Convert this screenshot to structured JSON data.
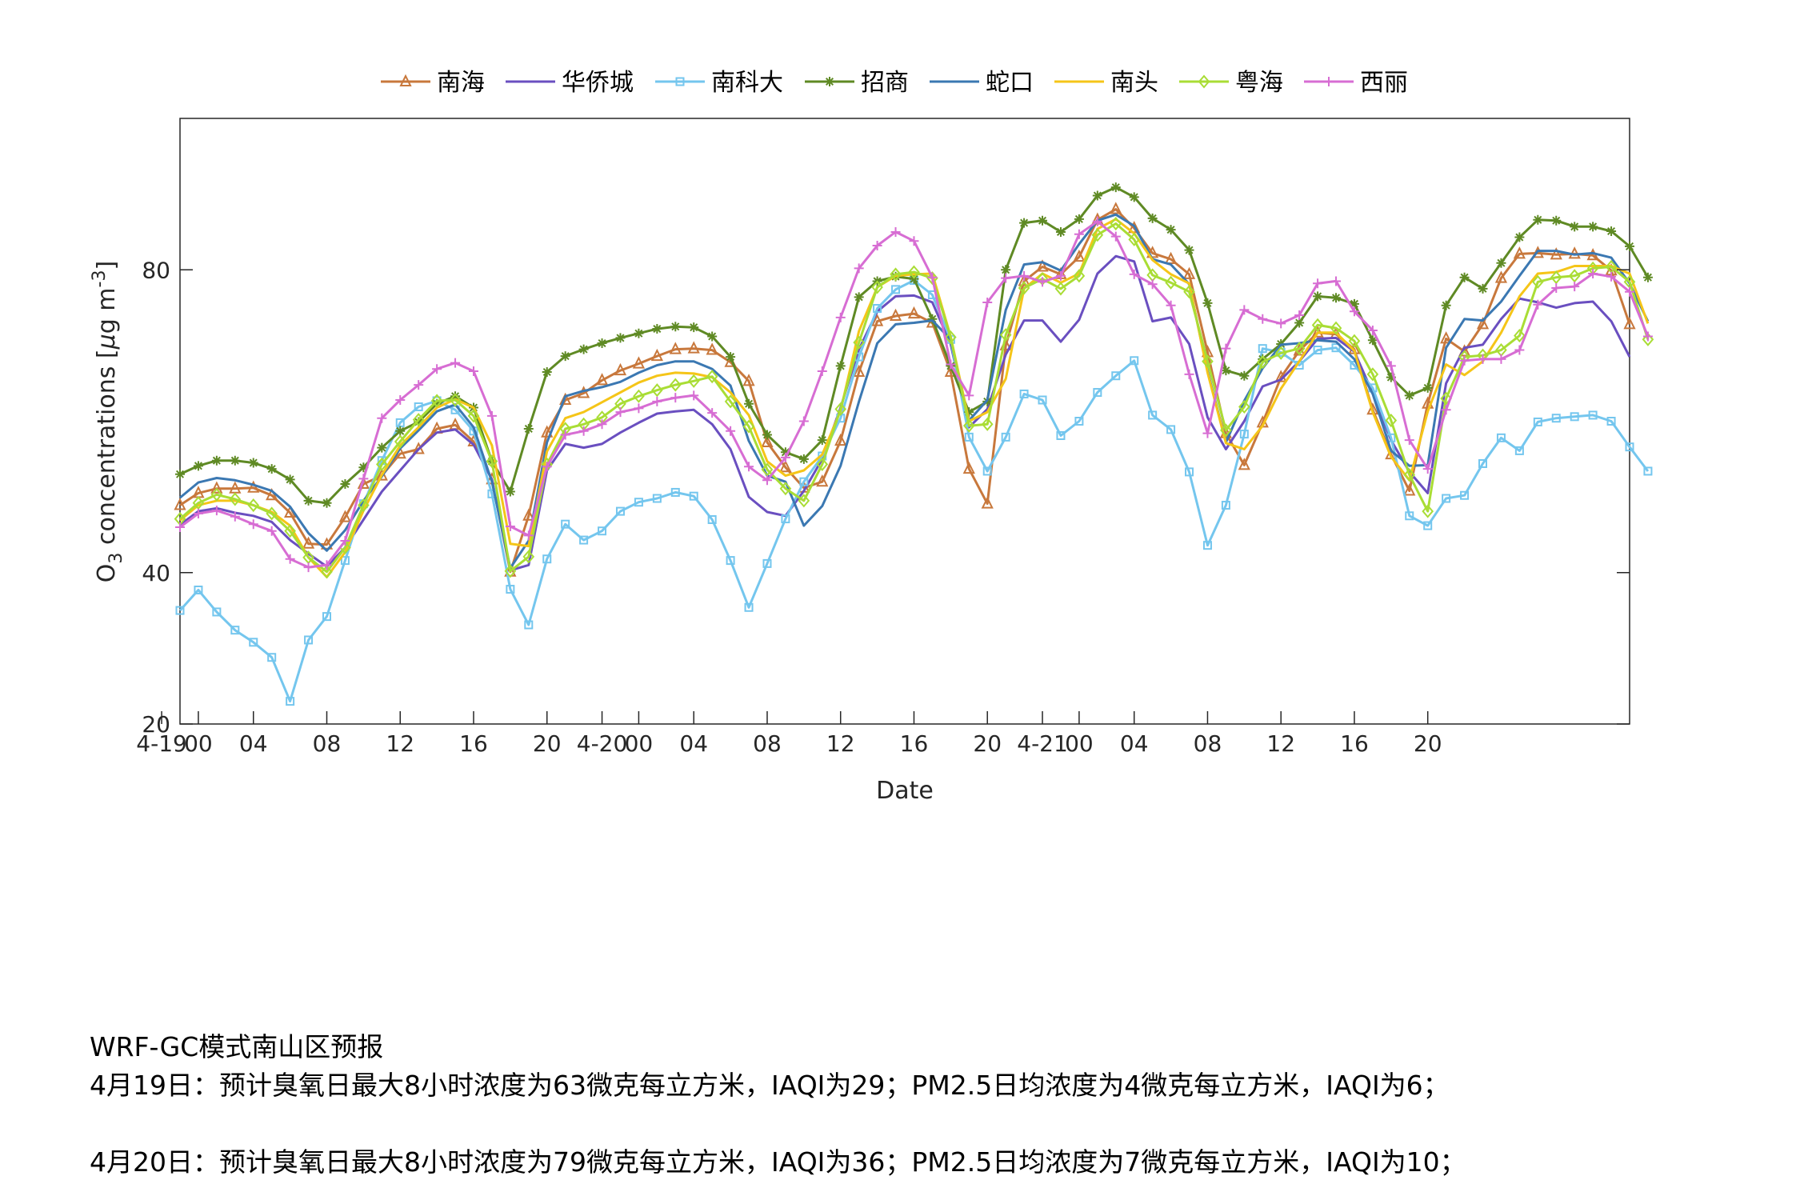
{
  "chart_data": {
    "type": "line",
    "xlabel": "Date",
    "ylabel_main": "O",
    "ylabel_sub": "3",
    "ylabel_rest": " concentrations [",
    "ylabel_mu": "μ",
    "ylabel_unit": "g m",
    "ylabel_sup": "-3",
    "ylabel_close": "]",
    "ylim": [
      20,
      100
    ],
    "yticks": [
      20,
      40,
      80
    ],
    "ytick_labels": [
      "20",
      "40",
      "80"
    ],
    "x_start_hour": 0,
    "x_end_hour": 71,
    "xticks": [
      {
        "hour": -1,
        "label": "4-19"
      },
      {
        "hour": 1,
        "label": "00"
      },
      {
        "hour": 4,
        "label": "04"
      },
      {
        "hour": 8,
        "label": "08"
      },
      {
        "hour": 12,
        "label": "12"
      },
      {
        "hour": 16,
        "label": "16"
      },
      {
        "hour": 20,
        "label": "20"
      },
      {
        "hour": 23,
        "label": "4-20"
      },
      {
        "hour": 25,
        "label": "00"
      },
      {
        "hour": 28,
        "label": "04"
      },
      {
        "hour": 32,
        "label": "08"
      },
      {
        "hour": 36,
        "label": "12"
      },
      {
        "hour": 40,
        "label": "16"
      },
      {
        "hour": 44,
        "label": "20"
      },
      {
        "hour": 47,
        "label": "4-21"
      },
      {
        "hour": 49,
        "label": "00"
      },
      {
        "hour": 52,
        "label": "04"
      },
      {
        "hour": 56,
        "label": "08"
      },
      {
        "hour": 60,
        "label": "12"
      },
      {
        "hour": 64,
        "label": "16"
      },
      {
        "hour": 68,
        "label": "20"
      }
    ],
    "grid": false,
    "legend_placement": "top-center",
    "series": [
      {
        "name": "南海",
        "color": "#c8783c",
        "marker": "triangle",
        "values": [
          48.9,
          50.5,
          51.1,
          51.1,
          51.2,
          50.2,
          47.9,
          43.8,
          43.7,
          47.3,
          51.7,
          52.8,
          55.7,
          56.3,
          59,
          59.5,
          57.3,
          52.3,
          40.1,
          47.5,
          58.5,
          62.8,
          63.7,
          65.4,
          66.7,
          67.6,
          68.6,
          69.5,
          69.6,
          69.4,
          67.8,
          65.3,
          57.2,
          53.9,
          51.2,
          52,
          57.4,
          66.5,
          73.2,
          73.9,
          74.2,
          73,
          66.5,
          53.7,
          49.1,
          70,
          78.5,
          80.4,
          79.4,
          81.7,
          86.6,
          88,
          85.5,
          82.2,
          81.4,
          79.4,
          69.1,
          58.4,
          54.2,
          59.8,
          65.8,
          69.3,
          71.7,
          71.5,
          69.5,
          61.5,
          55.6,
          50.8,
          62.3,
          70.9,
          69.2,
          72.8,
          78.9,
          82.1,
          82.2,
          82,
          82.1,
          81.9,
          79.9,
          72.8
        ]
      },
      {
        "name": "华侨城",
        "color": "#6a4fc0",
        "marker": "none",
        "values": [
          46.3,
          48.1,
          48.5,
          47.9,
          47.5,
          46.7,
          44.3,
          42.5,
          40.8,
          43.3,
          47,
          50.7,
          53.5,
          56.3,
          58.5,
          58.9,
          56.9,
          52.3,
          40.3,
          41,
          53.5,
          57,
          56.5,
          57,
          58.5,
          59.8,
          61,
          61.3,
          61.5,
          59.6,
          56.3,
          50,
          48,
          47.5,
          50.8,
          55,
          61.8,
          69.5,
          74.5,
          76.5,
          76.6,
          75.7,
          70.2,
          59.2,
          61.6,
          68.8,
          73.3,
          73.3,
          70.5,
          73.4,
          79.5,
          81.8,
          81.1,
          73.2,
          73.7,
          70.2,
          60.5,
          56.3,
          60,
          64.6,
          65.5,
          67.9,
          70.9,
          71,
          69.2,
          63.7,
          57.5,
          53.3,
          50.5,
          65,
          69.7,
          70.1,
          73.5,
          76.2,
          75.7,
          75,
          75.6,
          75.8,
          73.2,
          68.5
        ]
      },
      {
        "name": "南科大",
        "color": "#74c6ee",
        "marker": "square",
        "values": [
          35,
          37.7,
          34.8,
          32.4,
          30.8,
          28.8,
          23,
          31.1,
          34.2,
          41.6,
          49.1,
          54.8,
          59.8,
          61.9,
          62.7,
          61.5,
          58.7,
          50.4,
          37.8,
          33.1,
          41.8,
          46.4,
          44.3,
          45.5,
          48.1,
          49.3,
          49.8,
          50.6,
          50.1,
          47,
          41.6,
          35.4,
          41.2,
          47.1,
          52,
          55.4,
          60.4,
          68.5,
          74.9,
          77.4,
          78.6,
          76.7,
          70.8,
          57.9,
          53.4,
          57.9,
          63.6,
          62.8,
          58.1,
          60,
          63.8,
          66,
          68,
          60.8,
          58.9,
          53.3,
          43.6,
          48.9,
          58.3,
          69.6,
          69.1,
          67.4,
          69.4,
          69.7,
          67.4,
          64.4,
          57.8,
          47.5,
          46.2,
          49.8,
          50.2,
          54.4,
          57.8,
          56.1,
          59.9,
          60.4,
          60.6,
          60.8,
          60,
          56.6,
          53.4
        ]
      },
      {
        "name": "招商",
        "color": "#5f8a24",
        "marker": "star",
        "values": [
          53,
          54.1,
          54.8,
          54.8,
          54.5,
          53.7,
          52.3,
          49.5,
          49.2,
          51.7,
          53.9,
          56.5,
          58.7,
          59.9,
          62.3,
          63.3,
          61.8,
          54.7,
          50.7,
          59,
          66.5,
          68.6,
          69.5,
          70.3,
          71,
          71.6,
          72.2,
          72.5,
          72.4,
          71.2,
          68.5,
          62.3,
          58.2,
          55.9,
          55,
          57.5,
          67.3,
          76.4,
          78.5,
          79.1,
          78.8,
          73.5,
          67.3,
          61.2,
          62.6,
          80,
          86.2,
          86.5,
          85,
          86.7,
          89.8,
          90.9,
          89.6,
          86.8,
          85.3,
          82.6,
          75.6,
          66.7,
          66,
          68.2,
          70.2,
          73,
          76.5,
          76.3,
          75.5,
          70.7,
          65.8,
          63.4,
          64.4,
          75.3,
          79,
          77.5,
          80.9,
          84.3,
          86.6,
          86.5,
          85.7,
          85.7,
          85.1,
          83.1,
          79
        ]
      },
      {
        "name": "蛇口",
        "color": "#3b78b2",
        "marker": "none",
        "values": [
          49.9,
          51.9,
          52.5,
          52.2,
          51.6,
          50.8,
          48.7,
          45.2,
          42.9,
          45.6,
          49.5,
          52.7,
          56.4,
          58.8,
          61.3,
          62.2,
          59.2,
          52,
          40.6,
          44.2,
          57.2,
          63.3,
          64,
          64.5,
          65.2,
          66.4,
          67.4,
          67.9,
          67.9,
          66.9,
          64.7,
          57.4,
          52.8,
          52,
          46.2,
          48.8,
          54.1,
          62.6,
          70.3,
          72.8,
          73,
          73.3,
          70.8,
          60.1,
          62.8,
          74.7,
          80.7,
          81,
          79.9,
          83.4,
          86.5,
          87.3,
          85.8,
          81.4,
          80.7,
          78.1,
          66.6,
          57.2,
          62.7,
          67,
          70.1,
          70.3,
          70.7,
          70.5,
          68.2,
          63.6,
          56.1,
          54.1,
          54.2,
          69.7,
          73.5,
          73.3,
          75.8,
          79.2,
          82.5,
          82.5,
          82,
          82.2,
          81.6,
          78.2,
          73.2
        ]
      },
      {
        "name": "南头",
        "color": "#f5c518",
        "marker": "none",
        "values": [
          46.9,
          48.9,
          49.5,
          49.5,
          48.9,
          48,
          46.2,
          42,
          39.4,
          42.7,
          48.2,
          52.9,
          56.8,
          59.2,
          61.8,
          62.9,
          61.8,
          56.8,
          43.8,
          43.5,
          56,
          60.4,
          61.2,
          62.5,
          63.8,
          65.1,
          66,
          66.4,
          66.3,
          65.8,
          63.8,
          60.8,
          54.7,
          52.8,
          53.5,
          55.6,
          61.4,
          71.9,
          77.7,
          79.2,
          79.4,
          79.5,
          71.2,
          60,
          61.2,
          65.6,
          77.5,
          79.5,
          78.3,
          79.5,
          85.4,
          86.7,
          84.8,
          81.3,
          79.4,
          78.2,
          66.4,
          57.1,
          56.3,
          59.4,
          64.3,
          67.9,
          71.7,
          71.7,
          69.3,
          61.2,
          55.3,
          52.2,
          61.3,
          67.5,
          66.1,
          67.9,
          71.7,
          76.5,
          79.5,
          79.7,
          80.5,
          80.5,
          80.5,
          79.5,
          72.9
        ]
      },
      {
        "name": "粤海",
        "color": "#a9dd35",
        "marker": "diamond",
        "values": [
          47.1,
          49.2,
          50.3,
          49.7,
          48.9,
          47.8,
          45.5,
          42,
          40.1,
          43.3,
          48.9,
          54.3,
          57.3,
          60.2,
          62.7,
          62.8,
          60.7,
          54.7,
          40.2,
          42.1,
          54.3,
          59,
          59.6,
          60.5,
          62.3,
          63.3,
          64.1,
          64.8,
          65.3,
          65.9,
          62.6,
          59.3,
          53.6,
          51.1,
          49.5,
          54.3,
          61.6,
          70.4,
          77.7,
          79.4,
          79.7,
          78.9,
          71.1,
          59.4,
          59.6,
          71.4,
          77.6,
          78.8,
          77.5,
          79.2,
          84.6,
          86.1,
          84,
          79.3,
          78.3,
          77.1,
          67.9,
          58.8,
          61.9,
          67.8,
          69,
          69.6,
          72.7,
          72.3,
          70.6,
          66.2,
          60.1,
          52.9,
          48.1,
          63,
          68.5,
          68.7,
          69.4,
          71.3,
          78.4,
          79,
          79.2,
          80.2,
          80.4,
          78.4,
          70.8
        ]
      },
      {
        "name": "西丽",
        "color": "#d76dd3",
        "marker": "plus",
        "values": [
          46,
          47.8,
          48.2,
          47.4,
          46.4,
          45.5,
          41.8,
          40.7,
          41,
          44.2,
          52.4,
          60.4,
          62.8,
          64.8,
          66.9,
          67.7,
          66.6,
          60.7,
          46.1,
          44.9,
          54,
          58.2,
          58.7,
          59.6,
          61.2,
          61.7,
          62.6,
          63.1,
          63.4,
          61.1,
          58.7,
          54,
          52.2,
          55.2,
          60,
          66.6,
          73.7,
          80.2,
          83.2,
          85,
          83.8,
          79,
          67.5,
          63.4,
          75.7,
          78.9,
          79.2,
          78.4,
          79.2,
          84.7,
          86.4,
          84.4,
          79.4,
          78.1,
          75.3,
          66.2,
          58.4,
          69.6,
          74.7,
          73.5,
          72.9,
          74,
          78.2,
          78.5,
          74.5,
          72,
          67.3,
          57.5,
          53.7,
          61.5,
          68,
          68.2,
          68.2,
          69.4,
          75.4,
          77.6,
          77.8,
          79.5,
          79.1,
          77.1,
          71.2
        ]
      }
    ]
  },
  "report": {
    "line1": "WRF-GC模式南山区预报",
    "line2": "4月19日：预计臭氧日最大8小时浓度为63微克每立方米，IAQI为29；PM2.5日均浓度为4微克每立方米，IAQI为6；",
    "line3": "4月20日：预计臭氧日最大8小时浓度为79微克每立方米，IAQI为36；PM2.5日均浓度为7微克每立方米，IAQI为10；"
  }
}
